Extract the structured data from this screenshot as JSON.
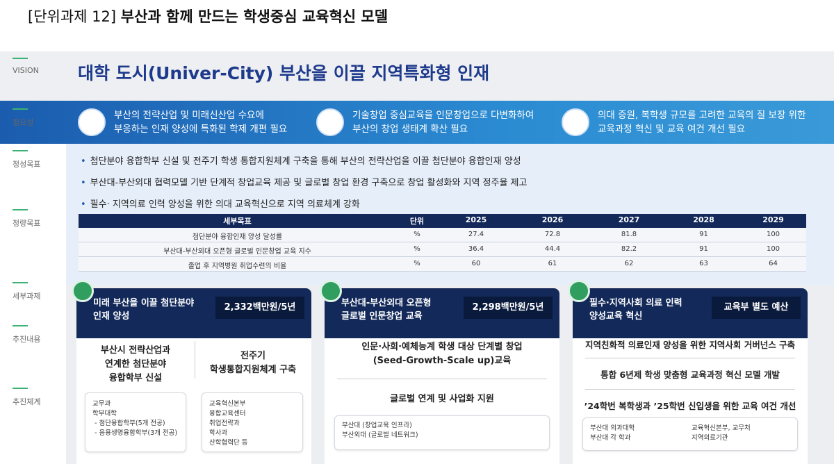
{
  "header": {
    "label": "[단위과제 12]",
    "title": "부산과 함께 만드는 학생중심 교육혁신 모델"
  },
  "sidebar": [
    "VISION",
    "필요성",
    "정성목표",
    "정량목표",
    "세부과제",
    "추진내용",
    "추진체계"
  ],
  "vision": "대학 도시(Univer-City) 부산을 이끌 지역특화형 인재",
  "needs": [
    "부산의 전략산업 및 미래신산업 수요에\n부응하는 인재 양성에 특화된 학제 개편 필요",
    "기술창업 중심교육을 인문창업으로 다변화하여\n부산의 창업 생태계 확산 필요",
    "의대 증원, 복학생 규모를 고려한 교육의 질 보장 위한\n교육과정 혁신 및 교육 여건 개선 필요"
  ],
  "qualitative_goals": [
    "첨단분야 융합학부 신설 및 전주기 학생 통합지원체계 구축을 통해 부산의 전략산업을 이끌 첨단분야 융합인재 양성",
    "부산대-부산외대 협력모델 기반 단계적 창업교육 제공 및 글로벌 창업 환경 구축으로 창업 활성화와 지역 정주율 제고",
    "필수· 지역의료 인력 양성을 위한 의대 교육혁신으로 지역 의료체계 강화"
  ],
  "table": {
    "header": [
      "세부목표",
      "단위",
      "2025",
      "2026",
      "2027",
      "2028",
      "2029"
    ],
    "rows": [
      [
        "첨단분야 융합인재 양성 달성률",
        "%",
        27.4,
        72.8,
        81.8,
        91,
        100
      ],
      [
        "부산대-부산외대 오픈형 글로벌 인문창업 교육 지수",
        "%",
        36.4,
        44.4,
        82.2,
        91,
        100
      ],
      [
        "졸업 후 지역병원 취업수련의 비율",
        "%",
        60,
        61,
        62,
        63,
        64
      ]
    ]
  },
  "tasks": [
    {
      "title": "미래 부산을 이끌 첨단분야\n인재 양성",
      "budget": "2,332백만원/5년",
      "contents": [
        "부산시 전략산업과\n연계한 첨단분야\n융합학부 신설",
        "전주기\n학생통합지원체계 구축"
      ],
      "systems": [
        [
          "교무과",
          "학부대학",
          "- 첨단융합학부(5개 전공)",
          "- 응용생명융합학부(3개 전공)"
        ],
        [
          "교육혁신본부",
          "융합교육센터",
          "취업전략과",
          "학사과",
          "산학협력단 등"
        ]
      ]
    },
    {
      "title": "부산대-부산외대 오픈형\n글로벌 인문창업 교육",
      "budget": "2,298백만원/5년",
      "contents": [
        "인문·사회·예체능계 학생 대상 단계별 창업\n(Seed-Growth-Scale up)교육",
        "글로벌 연계 및 사업화 지원"
      ],
      "systems": [
        [
          "부산대 (창업교육 인프라)",
          "부산외대 (글로벌 네트워크)"
        ]
      ]
    },
    {
      "title": "필수·지역사회 의료 인력\n양성교육 혁신",
      "budget": "교육부 별도 예산",
      "contents": [
        "지역친화적 의료인재 양성을 위한 지역사회 거버넌스 구축",
        "통합 6년제 학생 맞춤형 교육과정 혁신 모델 개발",
        "’24학번 복학생과 ’25학번 신입생을 위한 교육 여건 개선"
      ],
      "systems": [
        [
          "부산대 의과대학",
          "부산대 각 학과"
        ],
        [
          "교육혁신본부, 교무처",
          "지역의료기관"
        ]
      ]
    }
  ]
}
